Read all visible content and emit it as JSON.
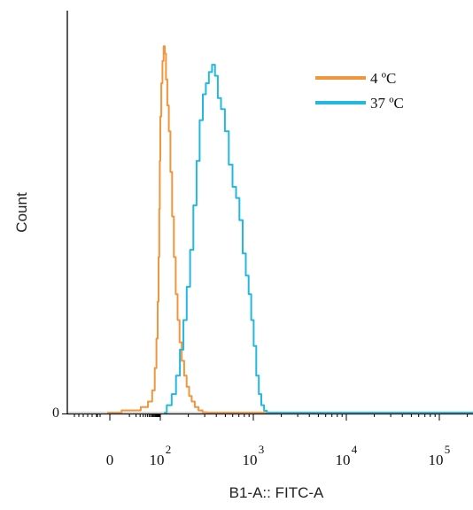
{
  "chart_data": {
    "type": "line",
    "title": "",
    "xlabel": "B1-A:: FITC-A",
    "ylabel": "Count",
    "x_scale": "biexponential",
    "x_ticks": [
      {
        "value": 0,
        "label": "0",
        "exp": ""
      },
      {
        "value": 100,
        "label": "10",
        "exp": "2"
      },
      {
        "value": 1000,
        "label": "10",
        "exp": "3"
      },
      {
        "value": 10000,
        "label": "10",
        "exp": "4"
      },
      {
        "value": 100000,
        "label": "10",
        "exp": "5"
      }
    ],
    "y_ticks": [
      {
        "value": 0,
        "label": "0"
      }
    ],
    "xlim": [
      -30,
      262144
    ],
    "ylim": [
      0,
      100
    ],
    "grid": false,
    "legend_position": "top-right",
    "series": [
      {
        "name": "4 ºC",
        "color": "#F0963C",
        "points": [
          [
            -10,
            0
          ],
          [
            10,
            0.6
          ],
          [
            25,
            1.5
          ],
          [
            40,
            3
          ],
          [
            55,
            6
          ],
          [
            65,
            12
          ],
          [
            75,
            20
          ],
          [
            82,
            30
          ],
          [
            88,
            42
          ],
          [
            93,
            55
          ],
          [
            97,
            68
          ],
          [
            101,
            80
          ],
          [
            104,
            89
          ],
          [
            107,
            95
          ],
          [
            110,
            99
          ],
          [
            113,
            97
          ],
          [
            117,
            90
          ],
          [
            121,
            83
          ],
          [
            126,
            76
          ],
          [
            131,
            65
          ],
          [
            137,
            53
          ],
          [
            143,
            42
          ],
          [
            150,
            32
          ],
          [
            157,
            25
          ],
          [
            165,
            19
          ],
          [
            175,
            14
          ],
          [
            186,
            10
          ],
          [
            198,
            7
          ],
          [
            210,
            4.5
          ],
          [
            225,
            3
          ],
          [
            245,
            1.5
          ],
          [
            270,
            0.6
          ],
          [
            300,
            0.1
          ],
          [
            340,
            0
          ]
        ]
      },
      {
        "name": "37 ºC",
        "color": "#22B8E0",
        "points": [
          [
            110,
            0
          ],
          [
            125,
            2
          ],
          [
            140,
            5
          ],
          [
            155,
            10
          ],
          [
            170,
            17
          ],
          [
            185,
            25
          ],
          [
            200,
            34
          ],
          [
            218,
            44
          ],
          [
            236,
            56
          ],
          [
            255,
            68
          ],
          [
            275,
            79
          ],
          [
            298,
            86
          ],
          [
            320,
            89
          ],
          [
            345,
            92
          ],
          [
            375,
            94
          ],
          [
            400,
            91
          ],
          [
            430,
            85
          ],
          [
            470,
            82
          ],
          [
            520,
            76
          ],
          [
            570,
            67
          ],
          [
            625,
            61
          ],
          [
            680,
            58
          ],
          [
            740,
            52
          ],
          [
            800,
            43
          ],
          [
            860,
            37
          ],
          [
            920,
            32
          ],
          [
            980,
            25
          ],
          [
            1040,
            18
          ],
          [
            1110,
            10
          ],
          [
            1180,
            5
          ],
          [
            1260,
            2
          ],
          [
            1350,
            0.5
          ],
          [
            1450,
            0
          ]
        ]
      }
    ]
  }
}
